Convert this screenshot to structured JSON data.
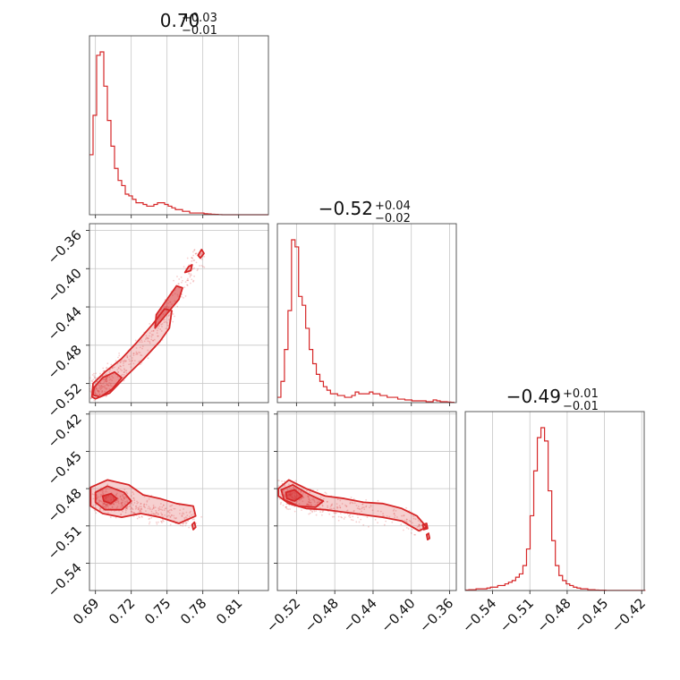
{
  "chart_data": {
    "type": "corner",
    "color": "#d62728",
    "grid": true,
    "parameters": [
      {
        "title": {
          "value": "0.70",
          "plus": "+0.03",
          "minus": "−0.01"
        },
        "range": [
          0.685,
          0.835
        ],
        "ticks": [
          "0.69",
          "0.72",
          "0.75",
          "0.78",
          "0.81"
        ]
      },
      {
        "title": {
          "value": "−0.52",
          "plus": "+0.04",
          "minus": "−0.02"
        },
        "range": [
          -0.54,
          -0.353
        ],
        "ticks": [
          "−0.52",
          "−0.48",
          "−0.44",
          "−0.40",
          "−0.36"
        ]
      },
      {
        "title": {
          "value": "−0.49",
          "plus": "+0.01",
          "minus": "−0.01"
        },
        "range": [
          -0.562,
          -0.418
        ],
        "ticks": [
          "−0.54",
          "−0.51",
          "−0.48",
          "−0.45",
          "−0.42"
        ]
      }
    ],
    "histograms": [
      {
        "param": 0,
        "edges_start": 0.685,
        "bin_width": 0.003,
        "counts": [
          35,
          58,
          93,
          95,
          75,
          55,
          40,
          27,
          20,
          17,
          12,
          11,
          9,
          7,
          7,
          6,
          5,
          5,
          6,
          7,
          7,
          6,
          5,
          4,
          3,
          3,
          2,
          2,
          1,
          1,
          1,
          1,
          0.6,
          0.5,
          0.3,
          0.2,
          0.1,
          0,
          0,
          0,
          0,
          0,
          0,
          0,
          0,
          0,
          0,
          0,
          0,
          0
        ]
      },
      {
        "param": 1,
        "edges_start": -0.54,
        "bin_width": 0.0037,
        "counts": [
          3,
          12,
          30,
          52,
          92,
          88,
          60,
          55,
          42,
          30,
          22,
          16,
          12,
          9,
          7,
          5,
          5,
          4,
          4,
          3,
          3,
          4,
          6,
          5,
          5,
          5,
          6,
          5,
          5,
          4,
          4,
          3,
          3,
          3,
          2,
          2,
          1.5,
          1.5,
          1,
          1,
          1,
          1,
          0.5,
          0.5,
          1.5,
          1,
          0.5,
          0.5,
          0.3,
          0.2
        ]
      },
      {
        "param": 2,
        "edges_start": -0.562,
        "bin_width": 0.0029,
        "counts": [
          0.3,
          0.5,
          0.5,
          1,
          1,
          1,
          1.5,
          2,
          2,
          3,
          3,
          4,
          5,
          6,
          8,
          10,
          15,
          25,
          45,
          72,
          92,
          98,
          90,
          60,
          30,
          15,
          9,
          6,
          4,
          3,
          2,
          1.5,
          1,
          1,
          0.5,
          0.5,
          0.3,
          0.2,
          0.2,
          0.1,
          0.1,
          0.1,
          0.1,
          0.1,
          0.1,
          0.1,
          0.1,
          0.1,
          0.1,
          0.1
        ]
      }
    ],
    "pairs": [
      {
        "x_param": 0,
        "y_param": 1,
        "ridge": [
          [
            0.686,
            -0.53
          ],
          [
            0.7,
            -0.515
          ],
          [
            0.715,
            -0.5
          ],
          [
            0.73,
            -0.48
          ],
          [
            0.745,
            -0.458
          ],
          [
            0.758,
            -0.43
          ],
          [
            0.77,
            -0.4
          ],
          [
            0.778,
            -0.382
          ]
        ],
        "contours": [
          [
            [
              0.687,
              -0.534
            ],
            [
              0.69,
              -0.536
            ],
            [
              0.702,
              -0.53
            ],
            [
              0.716,
              -0.512
            ],
            [
              0.73,
              -0.495
            ],
            [
              0.744,
              -0.476
            ],
            [
              0.752,
              -0.462
            ],
            [
              0.754,
              -0.444
            ],
            [
              0.748,
              -0.442
            ],
            [
              0.738,
              -0.458
            ],
            [
              0.724,
              -0.478
            ],
            [
              0.712,
              -0.494
            ],
            [
              0.698,
              -0.508
            ],
            [
              0.688,
              -0.52
            ]
          ],
          [
            [
              0.688,
              -0.532
            ],
            [
              0.694,
              -0.534
            ],
            [
              0.704,
              -0.526
            ],
            [
              0.712,
              -0.514
            ],
            [
              0.706,
              -0.508
            ],
            [
              0.696,
              -0.514
            ],
            [
              0.689,
              -0.524
            ]
          ],
          [
            [
              0.74,
              -0.462
            ],
            [
              0.752,
              -0.444
            ],
            [
              0.76,
              -0.432
            ],
            [
              0.763,
              -0.42
            ],
            [
              0.758,
              -0.418
            ],
            [
              0.75,
              -0.432
            ],
            [
              0.741,
              -0.448
            ]
          ],
          [
            [
              0.765,
              -0.404
            ],
            [
              0.768,
              -0.398
            ],
            [
              0.771,
              -0.396
            ],
            [
              0.77,
              -0.402
            ]
          ],
          [
            [
              0.776,
              -0.386
            ],
            [
              0.779,
              -0.38
            ],
            [
              0.781,
              -0.384
            ],
            [
              0.778,
              -0.389
            ]
          ]
        ]
      },
      {
        "x_param": 0,
        "y_param": 2,
        "ridge": [
          [
            0.692,
            -0.488
          ],
          [
            0.705,
            -0.49
          ],
          [
            0.718,
            -0.493
          ],
          [
            0.73,
            -0.496
          ],
          [
            0.745,
            -0.499
          ],
          [
            0.76,
            -0.502
          ],
          [
            0.77,
            -0.504
          ]
        ],
        "contours": [
          [
            [
              0.686,
              -0.479
            ],
            [
              0.7,
              -0.473
            ],
            [
              0.718,
              -0.477
            ],
            [
              0.73,
              -0.485
            ],
            [
              0.744,
              -0.488
            ],
            [
              0.758,
              -0.492
            ],
            [
              0.772,
              -0.494
            ],
            [
              0.774,
              -0.502
            ],
            [
              0.76,
              -0.508
            ],
            [
              0.744,
              -0.503
            ],
            [
              0.728,
              -0.5
            ],
            [
              0.712,
              -0.503
            ],
            [
              0.696,
              -0.5
            ],
            [
              0.686,
              -0.494
            ]
          ],
          [
            [
              0.69,
              -0.483
            ],
            [
              0.7,
              -0.478
            ],
            [
              0.714,
              -0.483
            ],
            [
              0.72,
              -0.49
            ],
            [
              0.712,
              -0.497
            ],
            [
              0.698,
              -0.497
            ],
            [
              0.69,
              -0.491
            ]
          ],
          [
            [
              0.696,
              -0.486
            ],
            [
              0.703,
              -0.484
            ],
            [
              0.708,
              -0.488
            ],
            [
              0.703,
              -0.492
            ],
            [
              0.697,
              -0.49
            ]
          ],
          [
            [
              0.771,
              -0.509
            ],
            [
              0.773,
              -0.507
            ],
            [
              0.774,
              -0.511
            ],
            [
              0.772,
              -0.513
            ]
          ]
        ]
      },
      {
        "x_param": 1,
        "y_param": 2,
        "ridge": [
          [
            -0.535,
            -0.483
          ],
          [
            -0.52,
            -0.488
          ],
          [
            -0.5,
            -0.493
          ],
          [
            -0.48,
            -0.496
          ],
          [
            -0.46,
            -0.499
          ],
          [
            -0.44,
            -0.501
          ],
          [
            -0.41,
            -0.505
          ],
          [
            -0.39,
            -0.508
          ]
        ],
        "contours": [
          [
            [
              -0.539,
              -0.48
            ],
            [
              -0.528,
              -0.473
            ],
            [
              -0.51,
              -0.48
            ],
            [
              -0.49,
              -0.486
            ],
            [
              -0.47,
              -0.488
            ],
            [
              -0.45,
              -0.491
            ],
            [
              -0.43,
              -0.492
            ],
            [
              -0.41,
              -0.496
            ],
            [
              -0.394,
              -0.502
            ],
            [
              -0.384,
              -0.511
            ],
            [
              -0.392,
              -0.514
            ],
            [
              -0.41,
              -0.506
            ],
            [
              -0.43,
              -0.503
            ],
            [
              -0.45,
              -0.501
            ],
            [
              -0.47,
              -0.499
            ],
            [
              -0.49,
              -0.497
            ],
            [
              -0.51,
              -0.496
            ],
            [
              -0.528,
              -0.492
            ],
            [
              -0.539,
              -0.486
            ]
          ],
          [
            [
              -0.536,
              -0.481
            ],
            [
              -0.524,
              -0.477
            ],
            [
              -0.506,
              -0.485
            ],
            [
              -0.492,
              -0.49
            ],
            [
              -0.5,
              -0.495
            ],
            [
              -0.518,
              -0.494
            ],
            [
              -0.533,
              -0.489
            ]
          ],
          [
            [
              -0.531,
              -0.483
            ],
            [
              -0.522,
              -0.481
            ],
            [
              -0.514,
              -0.486
            ],
            [
              -0.522,
              -0.49
            ],
            [
              -0.53,
              -0.488
            ]
          ],
          [
            [
              -0.388,
              -0.509
            ],
            [
              -0.384,
              -0.508
            ],
            [
              -0.383,
              -0.512
            ],
            [
              -0.387,
              -0.513
            ]
          ],
          [
            [
              -0.384,
              -0.517
            ],
            [
              -0.382,
              -0.516
            ],
            [
              -0.381,
              -0.52
            ],
            [
              -0.383,
              -0.521
            ]
          ]
        ]
      }
    ]
  }
}
